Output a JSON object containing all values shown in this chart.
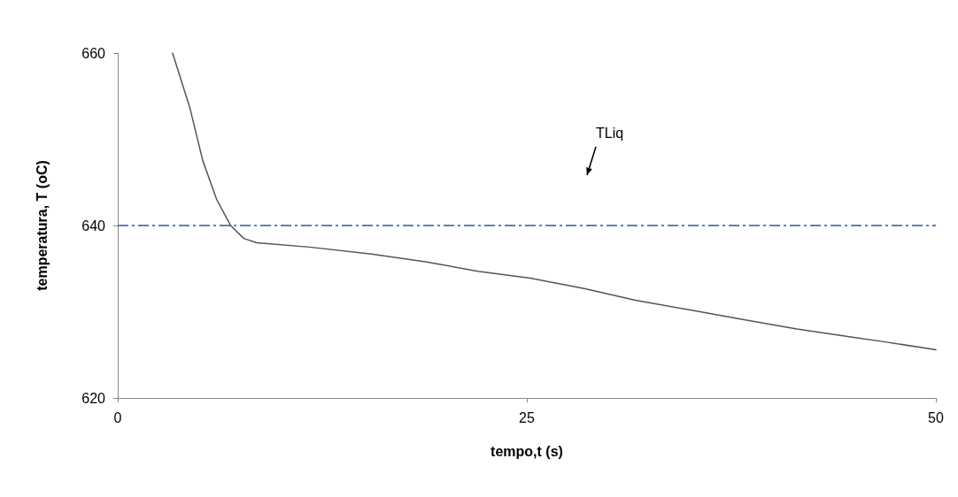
{
  "chart_data": {
    "type": "line",
    "xlabel": "tempo,t (s)",
    "ylabel": "temperatura, T (oC)",
    "x": [
      3.35,
      4.4,
      5.2,
      6.05,
      6.9,
      7.7,
      8.5,
      11.7,
      15.5,
      18.8,
      22,
      25.2,
      28.5,
      31.7,
      35,
      38.2,
      41.5,
      44.7,
      46.9,
      50
    ],
    "series": [
      {
        "color": "#555555",
        "values": [
          660,
          653.7,
          647.5,
          643,
          640,
          638.5,
          638,
          637.5,
          636.7,
          635.8,
          634.7,
          633.9,
          632.7,
          631.3,
          630.2,
          629.1,
          628,
          627.1,
          626.5,
          625.6
        ]
      }
    ],
    "xlim": [
      0,
      50
    ],
    "xticks": [
      0,
      25,
      50
    ],
    "ylim": [
      620,
      660
    ],
    "yticks": [
      620,
      640,
      660
    ],
    "ref_lines": [
      {
        "axis": "y",
        "value": 640,
        "color": "#2f5597",
        "line_style": "dashed"
      }
    ],
    "annotations": [
      "TLiq"
    ],
    "grid": false,
    "marker": "none",
    "line_style": "solid"
  }
}
